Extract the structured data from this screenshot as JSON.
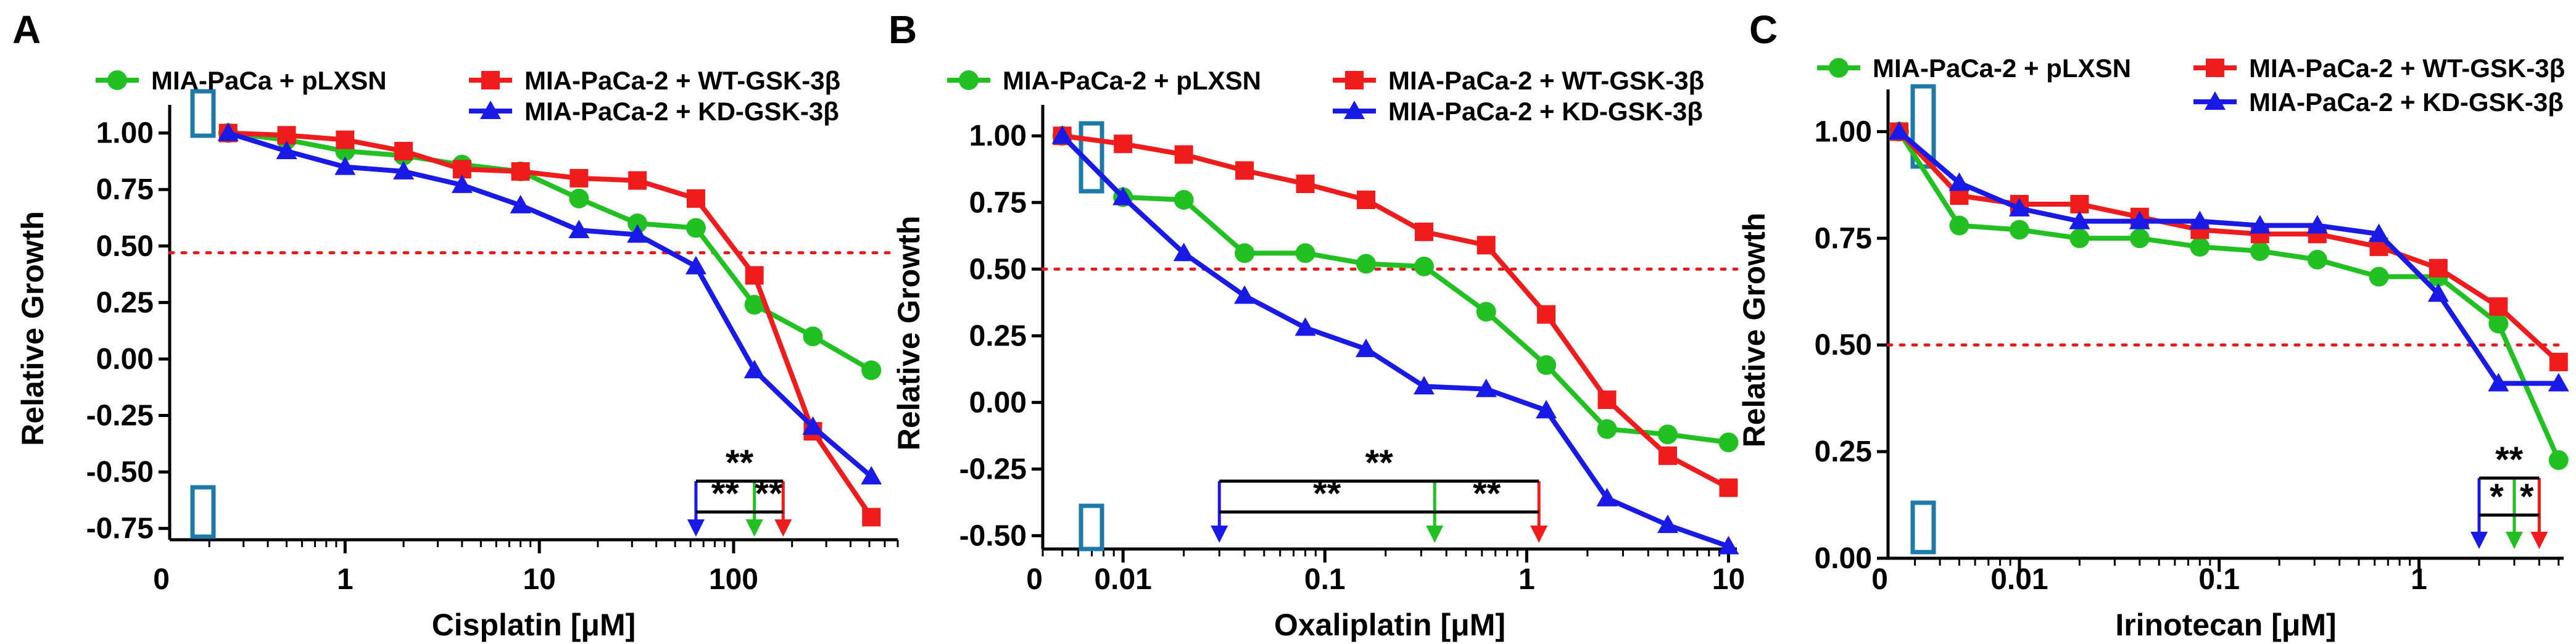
{
  "chart_data": [
    {
      "panel": "A",
      "type": "line",
      "xlabel": "Cisplatin [μM]",
      "ylabel": "Relative Growth",
      "x_scale": "log",
      "xlim": [
        0.125,
        700
      ],
      "ylim": [
        -0.8,
        1.07
      ],
      "x_ticks": [
        {
          "value": 1,
          "label": "1"
        },
        {
          "value": 10,
          "label": "10"
        },
        {
          "value": 100,
          "label": "100"
        }
      ],
      "x_zero_label": "0",
      "y_ticks": [
        1.0,
        0.75,
        0.5,
        0.25,
        0.0,
        -0.25,
        -0.5,
        -0.75
      ],
      "y_tick_labels": [
        "1.00",
        "0.75",
        "0.50",
        "0.25",
        "0.00",
        "-0.25",
        "-0.50",
        "-0.75"
      ],
      "reference_line": {
        "y": 0.47,
        "color": "#e41a1c",
        "style": "dotted"
      },
      "series": [
        {
          "name": "MIA-PaCa + pLXSN",
          "color": "#22c022",
          "marker": "circle",
          "x": [
            0.25,
            0.5,
            1,
            2,
            4,
            8,
            16,
            32,
            64,
            128,
            256,
            512
          ],
          "y": [
            1.0,
            0.97,
            0.92,
            0.9,
            0.86,
            0.83,
            0.71,
            0.6,
            0.58,
            0.24,
            0.1,
            -0.05
          ]
        },
        {
          "name": "MIA-PaCa-2 + WT-GSK-3β",
          "color": "#ee1c1c",
          "marker": "square",
          "x": [
            0.25,
            0.5,
            1,
            2,
            4,
            8,
            16,
            32,
            64,
            128,
            256,
            512
          ],
          "y": [
            1.0,
            0.99,
            0.97,
            0.92,
            0.84,
            0.83,
            0.8,
            0.79,
            0.71,
            0.37,
            -0.32,
            -0.7
          ]
        },
        {
          "name": "MIA-PaCa-2 + KD-GSK-3β",
          "color": "#1a1ae6",
          "marker": "triangle",
          "x": [
            0.25,
            0.5,
            1,
            2,
            4,
            8,
            16,
            32,
            64,
            128,
            256,
            512
          ],
          "y": [
            1.0,
            0.92,
            0.85,
            0.83,
            0.77,
            0.68,
            0.57,
            0.55,
            0.41,
            -0.05,
            -0.3,
            -0.52
          ]
        }
      ],
      "legend": {
        "placement": "top"
      },
      "arrows": [
        {
          "x": 64,
          "color": "#1a1ae6"
        },
        {
          "x": 128,
          "color": "#22c022"
        },
        {
          "x": 180,
          "color": "#ee1c1c"
        }
      ],
      "significance": [
        {
          "x1": 64,
          "x2": 180,
          "label": "**",
          "level": "top"
        },
        {
          "x1": 64,
          "x2": 128,
          "label": "**",
          "level": "bottom"
        },
        {
          "x1": 128,
          "x2": 180,
          "label": "**",
          "level": "bottom"
        }
      ]
    },
    {
      "panel": "B",
      "type": "line",
      "xlabel": "Oxaliplatin [μM]",
      "ylabel": "Relative Growth",
      "x_scale": "log",
      "xlim": [
        0.004,
        11
      ],
      "ylim": [
        -0.55,
        1.07
      ],
      "x_ticks": [
        {
          "value": 0.01,
          "label": "0.01"
        },
        {
          "value": 0.1,
          "label": "0.1"
        },
        {
          "value": 1,
          "label": "1"
        },
        {
          "value": 10,
          "label": "10"
        }
      ],
      "x_zero_label": "0",
      "y_ticks": [
        1.0,
        0.75,
        0.5,
        0.25,
        0.0,
        -0.25,
        -0.5
      ],
      "y_tick_labels": [
        "1.00",
        "0.75",
        "0.50",
        "0.25",
        "0.00",
        "-0.25",
        "-0.50"
      ],
      "reference_line": {
        "y": 0.5,
        "color": "#e41a1c",
        "style": "dotted"
      },
      "series": [
        {
          "name": "MIA-PaCa-2 + pLXSN",
          "color": "#22c022",
          "marker": "circle",
          "x": [
            0.005,
            0.01,
            0.02,
            0.04,
            0.08,
            0.16,
            0.31,
            0.63,
            1.25,
            2.5,
            5,
            10
          ],
          "y": [
            1.0,
            0.77,
            0.76,
            0.56,
            0.56,
            0.52,
            0.51,
            0.34,
            0.14,
            -0.1,
            -0.12,
            -0.15
          ]
        },
        {
          "name": "MIA-PaCa-2 + WT-GSK-3β",
          "color": "#ee1c1c",
          "marker": "square",
          "x": [
            0.005,
            0.01,
            0.02,
            0.04,
            0.08,
            0.16,
            0.31,
            0.63,
            1.25,
            2.5,
            5,
            10
          ],
          "y": [
            1.0,
            0.97,
            0.93,
            0.87,
            0.82,
            0.76,
            0.64,
            0.59,
            0.33,
            0.01,
            -0.2,
            -0.32
          ]
        },
        {
          "name": "MIA-PaCa-2 + KD-GSK-3β",
          "color": "#1a1ae6",
          "marker": "triangle",
          "x": [
            0.005,
            0.01,
            0.02,
            0.04,
            0.08,
            0.16,
            0.31,
            0.63,
            1.25,
            2.5,
            5,
            10
          ],
          "y": [
            1.0,
            0.77,
            0.56,
            0.4,
            0.28,
            0.2,
            0.06,
            0.05,
            -0.03,
            -0.36,
            -0.46,
            -0.54
          ]
        }
      ],
      "legend": {
        "placement": "top"
      },
      "arrows": [
        {
          "x": 0.03,
          "color": "#1a1ae6"
        },
        {
          "x": 0.35,
          "color": "#22c022"
        },
        {
          "x": 1.15,
          "color": "#ee1c1c"
        }
      ],
      "significance": [
        {
          "x1": 0.03,
          "x2": 1.15,
          "label": "**",
          "level": "top"
        },
        {
          "x1": 0.03,
          "x2": 0.35,
          "label": "**",
          "level": "bottom"
        },
        {
          "x1": 0.35,
          "x2": 1.15,
          "label": "**",
          "level": "bottom"
        }
      ]
    },
    {
      "panel": "C",
      "type": "line",
      "xlabel": "Irinotecan [μM]",
      "ylabel": "Relative Growth",
      "x_scale": "log",
      "xlim": [
        0.0022,
        5.3
      ],
      "ylim": [
        0.0,
        1.07
      ],
      "x_ticks": [
        {
          "value": 0.01,
          "label": "0.01"
        },
        {
          "value": 0.1,
          "label": "0.1"
        },
        {
          "value": 1,
          "label": "1"
        }
      ],
      "x_zero_label": "0",
      "y_ticks": [
        1.0,
        0.75,
        0.5,
        0.25,
        0.0
      ],
      "y_tick_labels": [
        "1.00",
        "0.75",
        "0.50",
        "0.25",
        "0.00"
      ],
      "reference_line": {
        "y": 0.5,
        "color": "#e41a1c",
        "style": "dotted"
      },
      "series": [
        {
          "name": "MIA-PaCa-2 + pLXSN",
          "color": "#22c022",
          "marker": "circle",
          "x": [
            0.0025,
            0.005,
            0.01,
            0.02,
            0.04,
            0.08,
            0.16,
            0.31,
            0.63,
            1.25,
            2.5,
            5
          ],
          "y": [
            1.0,
            0.78,
            0.77,
            0.75,
            0.75,
            0.73,
            0.72,
            0.7,
            0.66,
            0.66,
            0.55,
            0.23
          ]
        },
        {
          "name": "MIA-PaCa-2 + WT-GSK-3β",
          "color": "#ee1c1c",
          "marker": "square",
          "x": [
            0.0025,
            0.005,
            0.01,
            0.02,
            0.04,
            0.08,
            0.16,
            0.31,
            0.63,
            1.25,
            2.5,
            5
          ],
          "y": [
            1.0,
            0.85,
            0.83,
            0.83,
            0.8,
            0.77,
            0.76,
            0.76,
            0.73,
            0.68,
            0.59,
            0.46
          ]
        },
        {
          "name": "MIA-PaCa-2 + KD-GSK-3β",
          "color": "#1a1ae6",
          "marker": "triangle",
          "x": [
            0.0025,
            0.005,
            0.01,
            0.02,
            0.04,
            0.08,
            0.16,
            0.31,
            0.63,
            1.25,
            2.5,
            5
          ],
          "y": [
            1.0,
            0.88,
            0.82,
            0.79,
            0.79,
            0.79,
            0.78,
            0.78,
            0.76,
            0.62,
            0.41,
            0.41
          ]
        }
      ],
      "legend": {
        "placement": "top"
      },
      "arrows": [
        {
          "x": 2.0,
          "color": "#1a1ae6"
        },
        {
          "x": 3.0,
          "color": "#22c022"
        },
        {
          "x": 4.0,
          "color": "#ee1c1c"
        }
      ],
      "significance": [
        {
          "x1": 2.0,
          "x2": 4.0,
          "label": "**",
          "level": "top"
        },
        {
          "x1": 2.0,
          "x2": 3.0,
          "label": "*",
          "level": "bottom"
        },
        {
          "x1": 3.0,
          "x2": 4.0,
          "label": "*",
          "level": "bottom"
        }
      ]
    }
  ]
}
